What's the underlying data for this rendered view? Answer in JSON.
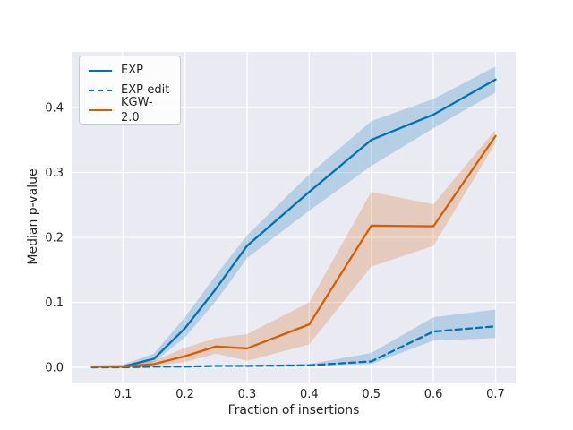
{
  "figure": {
    "bg": "#ffffff",
    "plot_bg": "#eaeaf2",
    "grid_color": "#ffffff",
    "text_color": "#262626",
    "accent_blue": "#0173b2",
    "accent_orange": "#d55e00"
  },
  "chart_data": {
    "type": "line",
    "title": "",
    "xlabel": "Fraction of insertions",
    "ylabel": "Median p-value",
    "grid": true,
    "legend_position": "upper left",
    "xlim": [
      0.0175,
      0.7325
    ],
    "ylim": [
      -0.0235,
      0.4855
    ],
    "x_ticks": [
      0.1,
      0.2,
      0.3,
      0.4,
      0.5,
      0.6,
      0.7
    ],
    "x_tick_labels": [
      "0.1",
      "0.2",
      "0.3",
      "0.4",
      "0.5",
      "0.6",
      "0.7"
    ],
    "y_ticks": [
      0.0,
      0.1,
      0.2,
      0.3,
      0.4
    ],
    "y_tick_labels": [
      "0.0",
      "0.1",
      "0.2",
      "0.3",
      "0.4"
    ],
    "x": [
      0.05,
      0.1,
      0.15,
      0.2,
      0.25,
      0.3,
      0.4,
      0.5,
      0.6,
      0.7
    ],
    "series": [
      {
        "name": "EXP",
        "color": "#0173b2",
        "style": "solid",
        "values": [
          0.001,
          0.001,
          0.013,
          0.06,
          0.121,
          0.187,
          0.27,
          0.35,
          0.389,
          0.443
        ],
        "band_low": [
          0.0,
          0.0,
          0.008,
          0.046,
          0.102,
          0.168,
          0.241,
          0.31,
          0.368,
          0.423
        ],
        "band_high": [
          0.003,
          0.004,
          0.021,
          0.077,
          0.142,
          0.203,
          0.297,
          0.379,
          0.413,
          0.463
        ]
      },
      {
        "name": "EXP-edit",
        "color": "#0173b2",
        "style": "dashed",
        "values": [
          0.0,
          0.0,
          0.001,
          0.001,
          0.002,
          0.002,
          0.003,
          0.009,
          0.055,
          0.063
        ],
        "band_low": [
          0.0,
          0.0,
          0.0,
          0.0,
          0.001,
          0.001,
          0.002,
          0.005,
          0.041,
          0.045
        ],
        "band_high": [
          0.001,
          0.001,
          0.002,
          0.002,
          0.003,
          0.004,
          0.005,
          0.022,
          0.077,
          0.089
        ]
      },
      {
        "name": "KGW-2.0",
        "color": "#d55e00",
        "style": "solid",
        "values": [
          0.001,
          0.001,
          0.005,
          0.017,
          0.032,
          0.029,
          0.066,
          0.218,
          0.217,
          0.356
        ],
        "band_low": [
          0.0,
          0.0,
          0.002,
          0.008,
          0.021,
          0.01,
          0.035,
          0.155,
          0.187,
          0.345
        ],
        "band_high": [
          0.002,
          0.004,
          0.01,
          0.03,
          0.045,
          0.051,
          0.1,
          0.27,
          0.251,
          0.366
        ]
      }
    ]
  }
}
